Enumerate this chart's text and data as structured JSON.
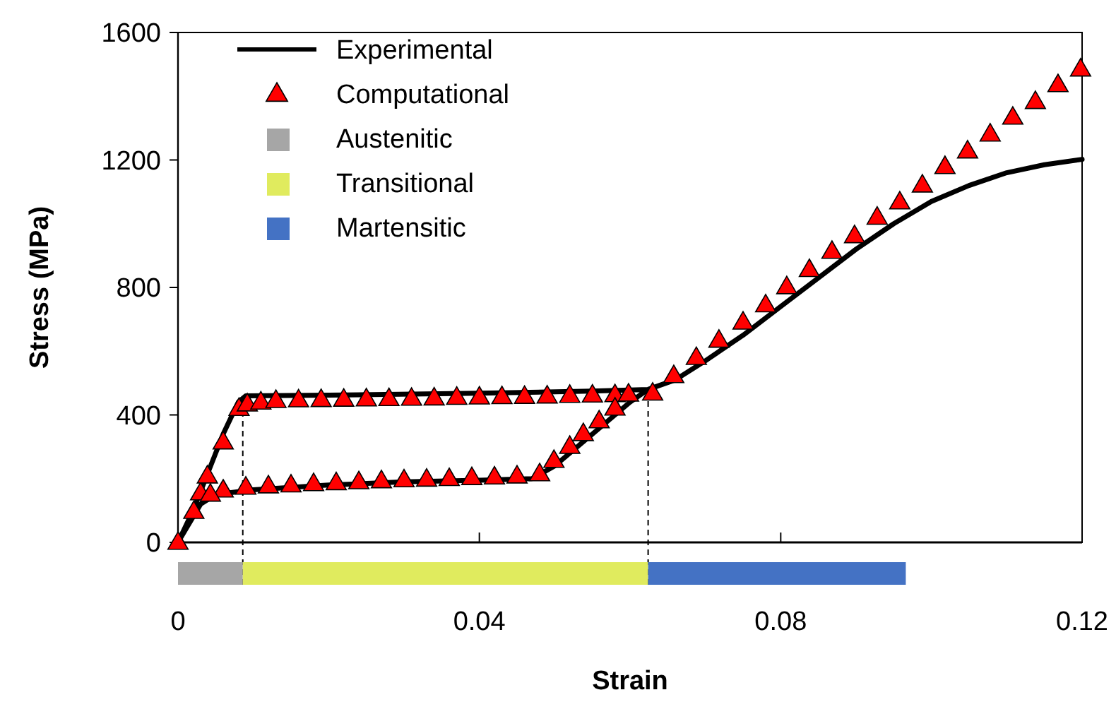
{
  "chart_data": [
    {
      "type": "line",
      "ylabel": "Stress (MPa)",
      "xlim": [
        0,
        0.12
      ],
      "xticks": [
        0,
        0.04,
        0.08,
        0.12
      ],
      "ylim": [
        0,
        1600
      ],
      "yticks": [
        0,
        400,
        800,
        1200,
        1600
      ],
      "tick_labels": "y",
      "grid": false,
      "legend": "top left",
      "series": [
        {
          "name": "Experimental",
          "type": "line",
          "color": "#000000",
          "line_style": "solid",
          "marker": "none",
          "x": [
            0,
            0.002,
            0.004,
            0.006,
            0.008,
            0.009,
            0.02,
            0.04,
            0.055,
            0.0624,
            0.066,
            0.07,
            0.075,
            0.08,
            0.085,
            0.09,
            0.095,
            0.1,
            0.105,
            0.11,
            0.115,
            0.12,
            0.1,
            0.0624,
            0.06,
            0.055,
            0.05,
            0.047,
            0.04,
            0.03,
            0.02,
            0.01,
            0.005,
            0.003,
            0
          ],
          "values": [
            0,
            100,
            220,
            340,
            440,
            460,
            462,
            468,
            475,
            480,
            510,
            570,
            650,
            740,
            830,
            920,
            1000,
            1070,
            1120,
            1160,
            1185,
            1202,
            null,
            480,
            440,
            340,
            240,
            200,
            195,
            190,
            180,
            165,
            150,
            120,
            0
          ]
        },
        {
          "name": "Computational",
          "type": "scatter",
          "color": "#ff0000",
          "marker": "triangle",
          "x": [
            0,
            0.0021,
            0.003,
            0.0039,
            0.006,
            0.0081,
            0.0092,
            0.011,
            0.013,
            0.016,
            0.019,
            0.022,
            0.025,
            0.028,
            0.031,
            0.034,
            0.037,
            0.04,
            0.043,
            0.046,
            0.049,
            0.052,
            0.055,
            0.058,
            0.0598,
            0.063,
            0.0658,
            0.0688,
            0.0718,
            0.075,
            0.078,
            0.0808,
            0.0838,
            0.0868,
            0.0898,
            0.0928,
            0.0958,
            0.0988,
            0.1018,
            0.1048,
            0.1078,
            0.1108,
            0.1138,
            0.1168,
            0.1198,
            0.058,
            0.0559,
            0.0538,
            0.052,
            0.0499,
            0.048,
            0.045,
            0.042,
            0.039,
            0.036,
            0.033,
            0.03,
            0.027,
            0.024,
            0.021,
            0.018,
            0.015,
            0.012,
            0.009,
            0.006,
            0.0043
          ],
          "values": [
            0,
            97,
            155,
            208,
            315,
            420,
            434,
            440,
            445,
            447,
            448,
            449,
            450,
            451,
            452,
            453,
            455,
            456,
            457,
            458,
            459,
            461,
            462,
            463,
            465,
            468,
            523,
            580,
            634,
            691,
            745,
            802,
            856,
            913,
            962,
            1020,
            1068,
            1121,
            1179,
            1228,
            1281,
            1334,
            1383,
            1436,
            1485,
            421,
            381,
            341,
            301,
            257,
            215,
            208,
            205,
            203,
            200,
            198,
            196,
            193,
            190,
            187,
            184,
            180,
            177,
            173,
            164,
            151
          ]
        }
      ],
      "ref_lines": [
        {
          "axis": "x",
          "value": 0.0086,
          "line_style": "dashed",
          "color": "#000000"
        },
        {
          "axis": "x",
          "value": 0.0624,
          "line_style": "dashed",
          "color": "#000000"
        }
      ]
    },
    {
      "type": "bar",
      "orientation": "horizontal",
      "stacked": true,
      "xlabel": "Strain",
      "categories": [
        null
      ],
      "xlim": [
        0,
        0.12
      ],
      "xticks": [
        0,
        0.04,
        0.08,
        0.12
      ],
      "tick_labels": "x",
      "legend": "top left",
      "series": [
        {
          "name": "Austenitic",
          "color": "#a6a6a6",
          "values": [
            0.0086
          ]
        },
        {
          "name": "Transitional",
          "color": "#e0eb5e",
          "values": [
            0.0538
          ]
        },
        {
          "name": "Martensitic",
          "color": "#4472c4",
          "values": [
            0.0342
          ]
        }
      ]
    }
  ]
}
